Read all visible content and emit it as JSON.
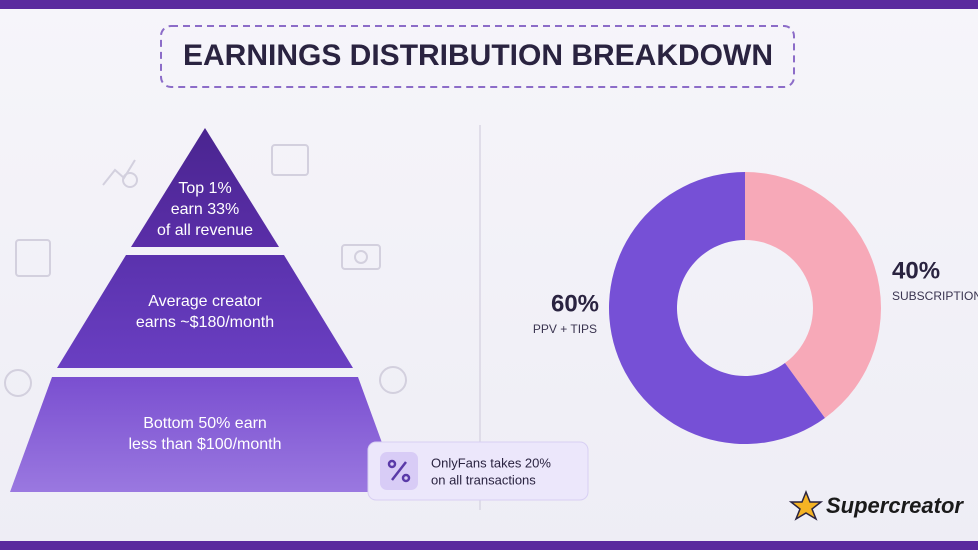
{
  "title": "EARNINGS DISTRIBUTION BREAKDOWN",
  "pyramid": {
    "tiers": [
      {
        "lines": [
          "Top 1%",
          "earn 33%",
          "of all revenue"
        ]
      },
      {
        "lines": [
          "Average creator",
          "earns ~$180/month"
        ]
      },
      {
        "lines": [
          "Bottom 50% earn",
          "less than $100/month"
        ]
      }
    ]
  },
  "note": {
    "lines": [
      "OnlyFans takes 20%",
      "on all transactions"
    ]
  },
  "brand": "Supercreator",
  "chart_data": {
    "type": "pie",
    "donut": true,
    "categories": [
      "SUBSCRIPTIONS",
      "PPV + TIPS"
    ],
    "values": [
      40,
      60
    ],
    "value_labels": [
      "40%",
      "60%"
    ],
    "colors": [
      "#f7a9b8",
      "#7650d6"
    ]
  }
}
